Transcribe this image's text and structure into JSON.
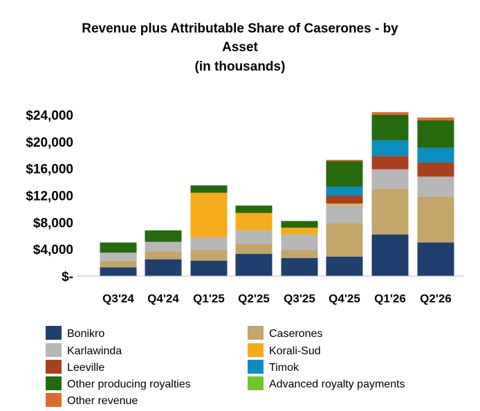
{
  "chart_data": {
    "type": "bar",
    "stacked": true,
    "title": [
      "Revenue plus Attributable Share of Caserones - by",
      "Asset",
      "(in thousands)"
    ],
    "xlabel": "",
    "ylabel": "",
    "categories": [
      "Q3'24",
      "Q4'24",
      "Q1'25",
      "Q2'25",
      "Q3'25",
      "Q4'25",
      "Q1'26",
      "Q2'26"
    ],
    "ylim": [
      0,
      24000
    ],
    "yticks": [
      0,
      4000,
      8000,
      12000,
      16000,
      20000,
      24000
    ],
    "ytick_labels": [
      "$-",
      "$4,000",
      "$8,000",
      "$12,000",
      "$16,000",
      "$20,000",
      "$24,000"
    ],
    "grid": false,
    "legend_position": "bottom",
    "series": [
      {
        "name": "Bonikro",
        "color": "#1f3f6e",
        "values": [
          1300,
          2500,
          2300,
          3300,
          2700,
          2900,
          6200,
          5000
        ]
      },
      {
        "name": "Caserones",
        "color": "#c4a56a",
        "values": [
          1000,
          1200,
          1600,
          1500,
          1200,
          5000,
          6800,
          6800
        ]
      },
      {
        "name": "Karlawinda",
        "color": "#b7b7b7",
        "values": [
          1200,
          1400,
          1900,
          2000,
          2300,
          2700,
          2900,
          3000
        ]
      },
      {
        "name": "Korali-Sud",
        "color": "#f6ab1b",
        "values": [
          0,
          0,
          6600,
          2600,
          1000,
          200,
          0,
          0
        ]
      },
      {
        "name": "Leeville",
        "color": "#aa3f1e",
        "values": [
          0,
          0,
          0,
          0,
          0,
          1200,
          2000,
          2100
        ]
      },
      {
        "name": "Timok",
        "color": "#0a8ec0",
        "values": [
          0,
          0,
          0,
          0,
          0,
          1300,
          2300,
          2200
        ]
      },
      {
        "name": "Other producing royalties",
        "color": "#266a0e",
        "values": [
          1500,
          1700,
          1100,
          1100,
          1000,
          3800,
          3800,
          4100
        ]
      },
      {
        "name": "Advanced royalty payments",
        "color": "#72c62d",
        "values": [
          0,
          0,
          0,
          0,
          0,
          0,
          0,
          0
        ]
      },
      {
        "name": "Other revenue",
        "color": "#e06a2b",
        "values": [
          0,
          0,
          0,
          0,
          0,
          200,
          400,
          400
        ]
      }
    ]
  }
}
